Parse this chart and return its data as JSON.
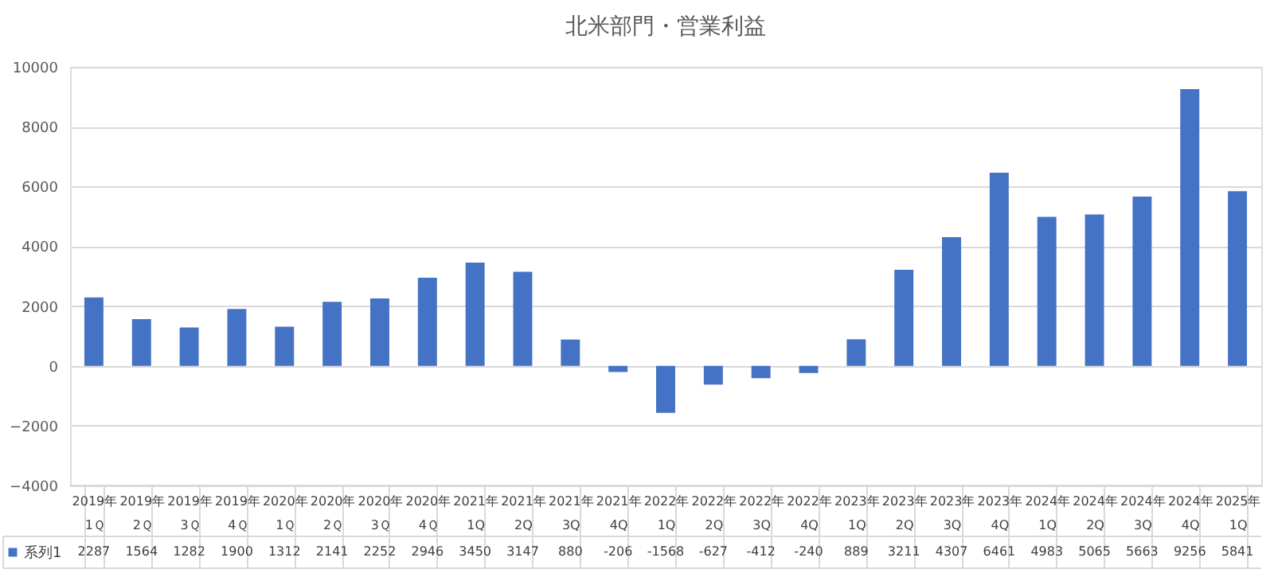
{
  "chart_data": {
    "type": "bar",
    "title": "北米部門・営業利益",
    "categories": [
      "2019年 1Ｑ",
      "2019年 2Ｑ",
      "2019年 3Ｑ",
      "2019年 4Ｑ",
      "2020年 1Ｑ",
      "2020年 2Ｑ",
      "2020年 3Ｑ",
      "2020年 4Ｑ",
      "2021年 1Q",
      "2021年 2Q",
      "2021年 3Q",
      "2021年 4Q",
      "2022年 1Q",
      "2022年 2Q",
      "2022年 3Q",
      "2022年 4Q",
      "2023年 1Q",
      "2023年 2Q",
      "2023年 3Q",
      "2023年 4Q",
      "2024年 1Q",
      "2024年 2Q",
      "2024年 3Q",
      "2024年 4Q",
      "2025年 1Q"
    ],
    "series": [
      {
        "name": "系列1",
        "color": "#4472c4",
        "values": [
          2287,
          1564,
          1282,
          1900,
          1312,
          2141,
          2252,
          2946,
          3450,
          3147,
          880,
          -206,
          -1568,
          -627,
          -412,
          -240,
          889,
          3211,
          4307,
          6461,
          4983,
          5065,
          5663,
          9256,
          5841
        ]
      }
    ],
    "ylim": [
      -4000,
      10000
    ],
    "yticks": [
      -4000,
      -2000,
      0,
      2000,
      4000,
      6000,
      8000,
      10000
    ],
    "grid": "y",
    "data_labels": true
  }
}
